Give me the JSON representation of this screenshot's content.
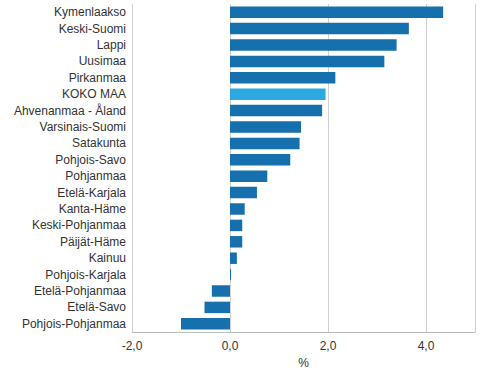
{
  "chart_data": {
    "type": "bar",
    "orientation": "horizontal",
    "categories": [
      "Kymenlaakso",
      "Keski-Suomi",
      "Lappi",
      "Uusimaa",
      "Pirkanmaa",
      "KOKO MAA",
      "Ahvenanmaa - Åland",
      "Varsinais-Suomi",
      "Satakunta",
      "Pohjois-Savo",
      "Pohjanmaa",
      "Etelä-Karjala",
      "Kanta-Häme",
      "Keski-Pohjanmaa",
      "Päijät-Häme",
      "Kainuu",
      "Pohjois-Karjala",
      "Etelä-Pohjanmaa",
      "Etelä-Savo",
      "Pohjois-Pohjanmaa"
    ],
    "values": [
      4.35,
      3.65,
      3.4,
      3.15,
      2.15,
      1.95,
      1.88,
      1.45,
      1.42,
      1.23,
      0.76,
      0.55,
      0.3,
      0.25,
      0.25,
      0.14,
      0.02,
      -0.37,
      -0.52,
      -1.0
    ],
    "colors": [
      "#1570ad",
      "#1570ad",
      "#1570ad",
      "#1570ad",
      "#1570ad",
      "#2aa9e2",
      "#1570ad",
      "#1570ad",
      "#1570ad",
      "#1570ad",
      "#1570ad",
      "#1570ad",
      "#1570ad",
      "#1570ad",
      "#1570ad",
      "#1570ad",
      "#1570ad",
      "#1570ad",
      "#1570ad",
      "#1570ad"
    ],
    "x_label": "%",
    "xlim": [
      -2,
      5
    ],
    "xticks": [
      {
        "value": -2,
        "label": "-2,0"
      },
      {
        "value": 0,
        "label": "0,0"
      },
      {
        "value": 2,
        "label": "2,0"
      },
      {
        "value": 4,
        "label": "4,0"
      }
    ],
    "grid": true
  }
}
